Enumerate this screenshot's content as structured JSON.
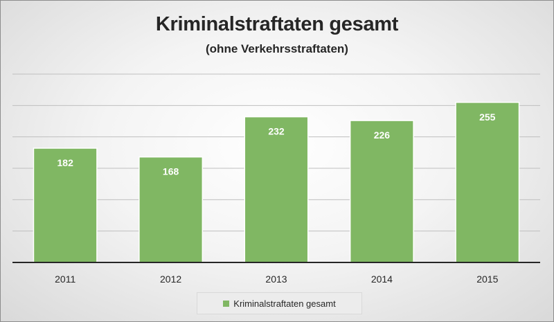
{
  "chart_data": {
    "type": "bar",
    "title": "Kriminalstraftaten gesamt",
    "subtitle": "(ohne Verkehrsstraftaten)",
    "categories": [
      "2011",
      "2012",
      "2013",
      "2014",
      "2015"
    ],
    "series": [
      {
        "name": "Kriminalstraftaten gesamt",
        "values": [
          182,
          168,
          232,
          226,
          255
        ]
      }
    ],
    "ylim": [
      0,
      300
    ],
    "grid": true,
    "legend": "bottom",
    "colors": {
      "bar": "#80b763",
      "bar_stroke": "#ffffff",
      "grid": "#bfbfbf",
      "axis": "#262626"
    }
  }
}
